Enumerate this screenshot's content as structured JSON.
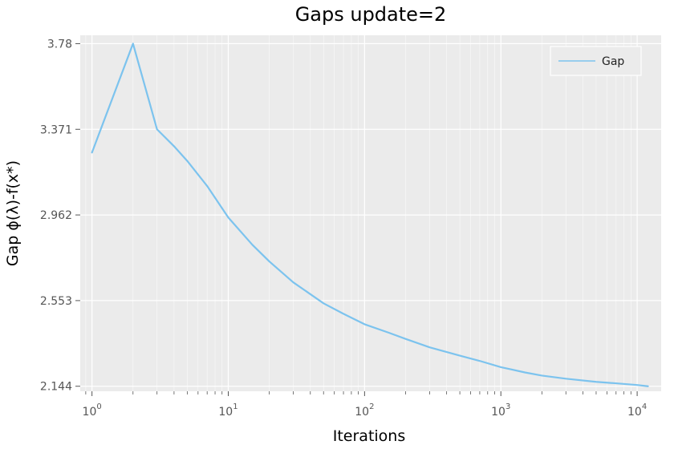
{
  "chart_data": {
    "type": "line",
    "title": "Gaps update=2",
    "xlabel": "Iterations",
    "ylabel": "Gap ϕ(λ)-f(x*)",
    "x_scale": "log",
    "xlim": [
      0.82,
      15000
    ],
    "ylim": [
      2.12,
      3.82
    ],
    "grid": true,
    "legend_position": "top-right",
    "x_ticks": [
      {
        "base": "10",
        "exp": "0",
        "value": 1
      },
      {
        "base": "10",
        "exp": "1",
        "value": 10
      },
      {
        "base": "10",
        "exp": "2",
        "value": 100
      },
      {
        "base": "10",
        "exp": "3",
        "value": 1000
      },
      {
        "base": "10",
        "exp": "4",
        "value": 10000
      }
    ],
    "y_ticks": [
      {
        "label": "3.78",
        "value": 3.78
      },
      {
        "label": "3.371",
        "value": 3.371
      },
      {
        "label": "2.962",
        "value": 2.962
      },
      {
        "label": "2.553",
        "value": 2.553
      },
      {
        "label": "2.144",
        "value": 2.144
      }
    ],
    "series": [
      {
        "name": "Gap",
        "color": "#7cc3ee",
        "points": [
          [
            1,
            3.26
          ],
          [
            2,
            3.78
          ],
          [
            3,
            3.371
          ],
          [
            4,
            3.29
          ],
          [
            5,
            3.22
          ],
          [
            7,
            3.1
          ],
          [
            10,
            2.95
          ],
          [
            15,
            2.82
          ],
          [
            20,
            2.74
          ],
          [
            30,
            2.64
          ],
          [
            50,
            2.54
          ],
          [
            70,
            2.49
          ],
          [
            100,
            2.44
          ],
          [
            150,
            2.4
          ],
          [
            200,
            2.37
          ],
          [
            300,
            2.33
          ],
          [
            500,
            2.29
          ],
          [
            700,
            2.265
          ],
          [
            1000,
            2.235
          ],
          [
            1500,
            2.21
          ],
          [
            2000,
            2.195
          ],
          [
            3000,
            2.18
          ],
          [
            5000,
            2.165
          ],
          [
            7000,
            2.158
          ],
          [
            10000,
            2.15
          ],
          [
            12000,
            2.144
          ]
        ]
      }
    ]
  },
  "colors": {
    "plot_background": "#ebebeb",
    "grid": "#ffffff",
    "line": "#7cc3ee"
  }
}
